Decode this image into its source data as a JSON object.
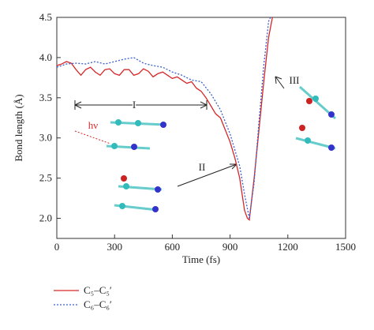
{
  "chart_data": {
    "type": "line",
    "xlabel": "Time (fs)",
    "ylabel": "Bond length (Å)",
    "xlim": [
      0,
      1500
    ],
    "xticks": [
      0,
      300,
      600,
      900,
      1200,
      1500
    ],
    "ylim": [
      1.75,
      4.5
    ],
    "yticks": [
      {
        "value": 2,
        "label": "2.0"
      },
      2.5,
      {
        "value": 3,
        "label": "3.0"
      },
      3.5,
      {
        "value": 4,
        "label": "4.0"
      },
      4.5
    ],
    "annotations": [
      "I",
      "II",
      "III",
      "hν"
    ],
    "series": [
      {
        "name": "C₅–C₅′",
        "color": "#d62728",
        "style": "solid",
        "x": [
          0,
          25,
          50,
          75,
          100,
          125,
          150,
          175,
          200,
          225,
          250,
          275,
          300,
          325,
          350,
          375,
          400,
          425,
          450,
          475,
          500,
          525,
          550,
          575,
          600,
          625,
          650,
          675,
          700,
          725,
          750,
          775,
          800,
          825,
          850,
          875,
          900,
          925,
          950,
          975,
          990,
          1000,
          1025,
          1050,
          1075,
          1100,
          1120
        ],
        "values": [
          3.9,
          3.92,
          3.95,
          3.93,
          3.85,
          3.78,
          3.85,
          3.88,
          3.82,
          3.78,
          3.85,
          3.86,
          3.8,
          3.78,
          3.85,
          3.85,
          3.78,
          3.8,
          3.86,
          3.83,
          3.76,
          3.8,
          3.82,
          3.78,
          3.74,
          3.76,
          3.72,
          3.68,
          3.7,
          3.62,
          3.58,
          3.5,
          3.4,
          3.3,
          3.25,
          3.1,
          2.95,
          2.75,
          2.5,
          2.1,
          2.0,
          1.98,
          2.5,
          3.1,
          3.7,
          4.25,
          4.5
        ]
      },
      {
        "name": "C₆–C₆′",
        "color": "#3a5fcd",
        "style": "dotted",
        "x": [
          0,
          50,
          100,
          150,
          200,
          250,
          300,
          350,
          400,
          450,
          500,
          550,
          600,
          650,
          700,
          750,
          800,
          850,
          900,
          950,
          975,
          1000,
          1025,
          1050,
          1075,
          1100,
          1110
        ],
        "values": [
          3.88,
          3.92,
          3.93,
          3.92,
          3.95,
          3.92,
          3.95,
          3.98,
          4.0,
          3.93,
          3.9,
          3.88,
          3.82,
          3.78,
          3.72,
          3.7,
          3.55,
          3.35,
          3.05,
          2.65,
          2.3,
          2.0,
          2.45,
          3.2,
          3.9,
          4.45,
          4.5
        ]
      }
    ]
  }
}
